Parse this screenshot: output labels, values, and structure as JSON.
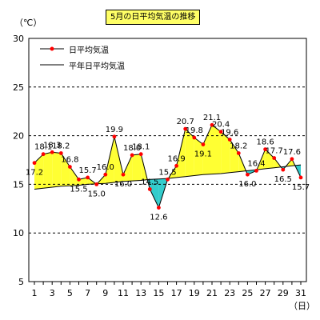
{
  "chart_data": {
    "type": "line",
    "title": "5月の日平均気温の推移",
    "unit_label": "（℃）",
    "x_unit_label": "（日）",
    "x": [
      1,
      2,
      3,
      4,
      5,
      6,
      7,
      8,
      9,
      10,
      11,
      12,
      13,
      14,
      15,
      16,
      17,
      18,
      19,
      20,
      21,
      22,
      23,
      24,
      25,
      26,
      27,
      28,
      29,
      30,
      31
    ],
    "x_tick_labels": [
      "1",
      "3",
      "5",
      "7",
      "9",
      "11",
      "13",
      "15",
      "17",
      "19",
      "21",
      "23",
      "25",
      "27",
      "29",
      "31"
    ],
    "y_tick_labels": [
      "5",
      "10",
      "15",
      "20",
      "25",
      "30"
    ],
    "ylim": [
      5,
      30
    ],
    "grid": true,
    "legend_position": "top-left",
    "series": [
      {
        "name": "日平均気温",
        "values": [
          17.2,
          18.1,
          18.3,
          18.2,
          16.8,
          15.5,
          15.7,
          15.0,
          16.0,
          19.9,
          16.0,
          18.0,
          18.1,
          14.5,
          12.6,
          15.5,
          16.9,
          20.7,
          19.8,
          19.1,
          21.1,
          20.4,
          19.6,
          18.2,
          16.0,
          16.4,
          18.6,
          17.7,
          16.5,
          17.6,
          15.7
        ],
        "color": "#ff0000",
        "line_color": "#000000"
      },
      {
        "name": "平年日平均気温",
        "values": [
          14.5,
          14.6,
          14.7,
          14.8,
          14.85,
          14.9,
          15.0,
          15.05,
          15.1,
          15.2,
          15.3,
          15.35,
          15.4,
          15.5,
          15.55,
          15.6,
          15.7,
          15.8,
          15.9,
          16.0,
          16.05,
          16.1,
          16.2,
          16.3,
          16.4,
          16.5,
          16.6,
          16.7,
          16.8,
          16.9,
          17.0
        ],
        "color": "#000000"
      }
    ],
    "data_labels": [
      "17.2",
      "18.1",
      "18.3",
      "18.2",
      "16.8",
      "15.5",
      "15.7",
      "15.0",
      "16.0",
      "19.9",
      "16.0",
      "18.0",
      "18.1",
      "14.5",
      "12.6",
      "15.5",
      "16.9",
      "20.7",
      "19.8",
      "19.1",
      "21.1",
      "20.4",
      "19.6",
      "18.2",
      "16.0",
      "16.4",
      "18.6",
      "17.7",
      "16.5",
      "17.6",
      "15.7"
    ],
    "fill_above_color": "#ffff33",
    "fill_below_color": "#33cccc",
    "grid_color": "#000000"
  }
}
